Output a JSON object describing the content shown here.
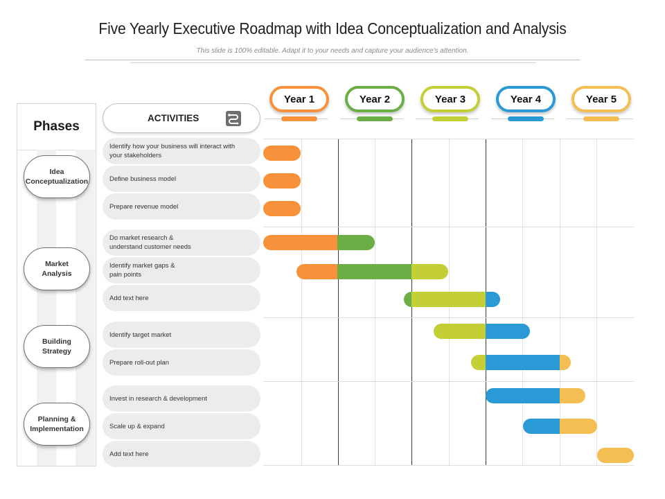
{
  "title": "Five Yearly Executive Roadmap with Idea Conceptualization and Analysis",
  "subtitle": "This slide is 100% editable.  Adapt it to your needs and capture your audience's attention.",
  "phases": {
    "heading": "Phases",
    "items": [
      {
        "label": "Idea\nConceptualization"
      },
      {
        "label": "Market\nAnalysis"
      },
      {
        "label": "Building\nStrategy"
      },
      {
        "label": "Planning &\nImplementation"
      }
    ]
  },
  "activities": {
    "heading": "ACTIVITIES",
    "icon": "roadmap-icon",
    "items": [
      {
        "label": "Identify  how your business  will interact  with\nyour stakeholders"
      },
      {
        "label": "Define  business  model"
      },
      {
        "label": "Prepare  revenue model"
      },
      {
        "label": "Do market research  &\nunderstand  customer needs"
      },
      {
        "label": "Identify  market gaps &\npain points"
      },
      {
        "label": "Add text here"
      },
      {
        "label": "Identify target  market"
      },
      {
        "label": "Prepare  roll-out  plan"
      },
      {
        "label": "Invest in research  & development"
      },
      {
        "label": "Scale up  & expand"
      },
      {
        "label": "Add text here"
      }
    ]
  },
  "years": [
    {
      "label": "Year 1",
      "color": "#f7923a"
    },
    {
      "label": "Year 2",
      "color": "#6aae45"
    },
    {
      "label": "Year 3",
      "color": "#c3cf35"
    },
    {
      "label": "Year 4",
      "color": "#2a9ad6"
    },
    {
      "label": "Year 5",
      "color": "#f4be52"
    }
  ],
  "chart_data": {
    "type": "gantt",
    "time_unit": "year",
    "range": [
      0,
      5
    ],
    "tasks": [
      {
        "activity": 0,
        "start": 0.0,
        "end": 0.5
      },
      {
        "activity": 1,
        "start": 0.0,
        "end": 0.5
      },
      {
        "activity": 2,
        "start": 0.0,
        "end": 0.5
      },
      {
        "activity": 3,
        "start": 0.0,
        "end": 1.5
      },
      {
        "activity": 4,
        "start": 0.45,
        "end": 2.5
      },
      {
        "activity": 5,
        "start": 1.9,
        "end": 3.2
      },
      {
        "activity": 6,
        "start": 2.3,
        "end": 3.6
      },
      {
        "activity": 7,
        "start": 2.8,
        "end": 4.15
      },
      {
        "activity": 8,
        "start": 3.0,
        "end": 4.35
      },
      {
        "activity": 9,
        "start": 3.5,
        "end": 4.5
      },
      {
        "activity": 10,
        "start": 4.5,
        "end": 5.0
      }
    ]
  }
}
